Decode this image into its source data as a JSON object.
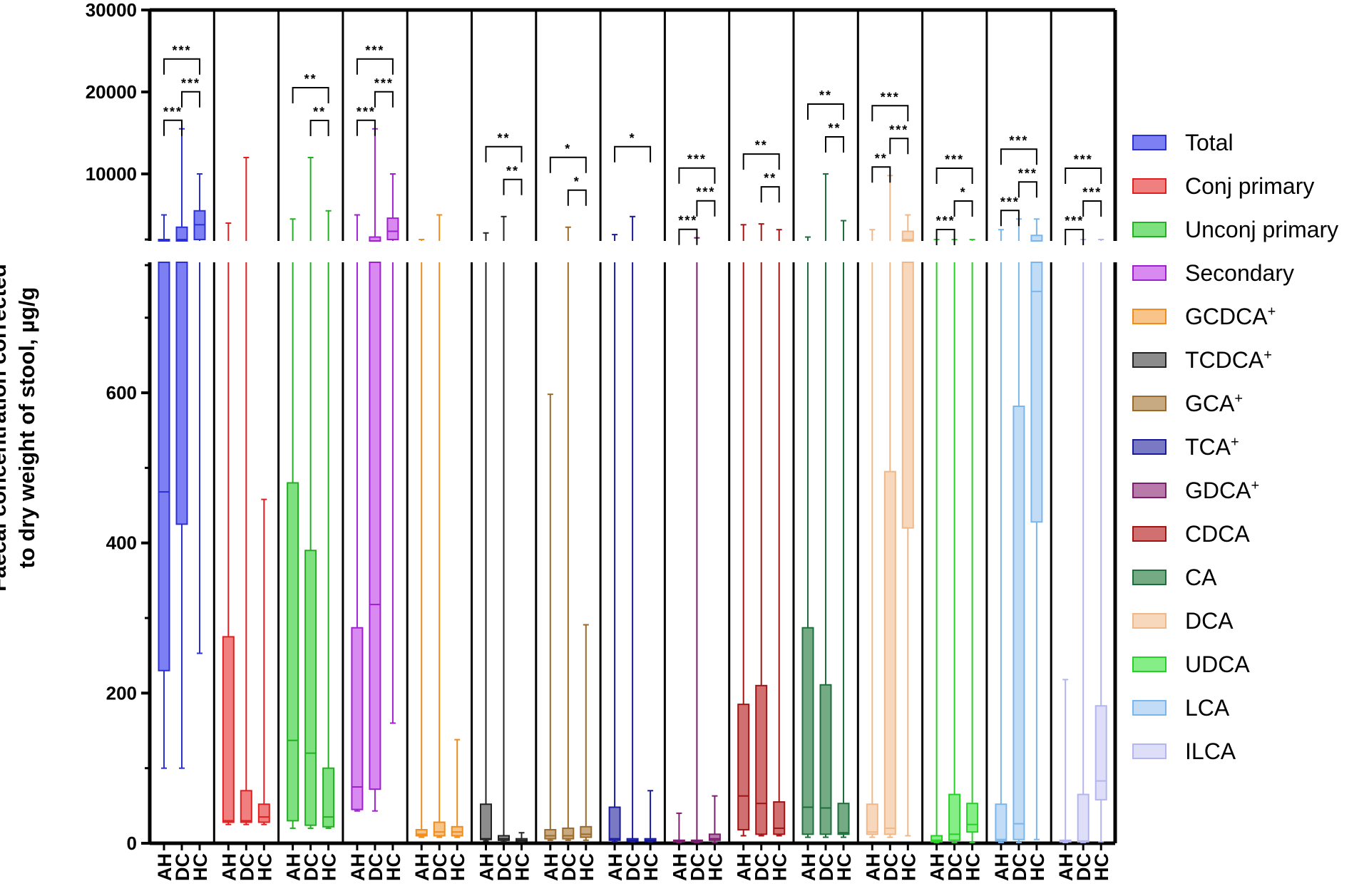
{
  "chart_data": {
    "type": "box",
    "ylabel_lines": [
      "Faecal concentration corrected",
      "to dry weight of stool, µg/g"
    ],
    "y_axis": {
      "broken": true,
      "lower_segment": {
        "range": [
          0,
          770
        ],
        "ticks": [
          "0",
          "200",
          "400",
          "600"
        ]
      },
      "upper_segment": {
        "range": [
          2000,
          30000
        ],
        "ticks": [
          "10000",
          "20000",
          "30000"
        ]
      }
    },
    "group_labels": [
      "AH",
      "DC",
      "HC"
    ],
    "legend_title_hidden": true,
    "panels": [
      {
        "name": "Total",
        "sup": "",
        "color": "#2b2fd6",
        "fill": "#7d80f2",
        "boxes": [
          {
            "group": "AH",
            "min": 100,
            "q1": 230,
            "median": 468,
            "q3": 2000,
            "max": 5000
          },
          {
            "group": "DC",
            "min": 100,
            "q1": 425,
            "median": 2000,
            "q3": 3500,
            "max": 15500
          },
          {
            "group": "HC",
            "min": 253,
            "q1": 2000,
            "median": 3800,
            "q3": 5500,
            "max": 10000
          }
        ],
        "sig": [
          {
            "pair": [
              "AH",
              "DC"
            ],
            "stars": "***"
          },
          {
            "pair": [
              "DC",
              "HC"
            ],
            "stars": "***"
          },
          {
            "pair": [
              "AH",
              "HC"
            ],
            "stars": "***"
          }
        ]
      },
      {
        "name": "Conj primary",
        "sup": "",
        "color": "#e02020",
        "fill": "#f08080",
        "boxes": [
          {
            "group": "AH",
            "min": 25,
            "q1": 28,
            "median": 30,
            "q3": 275,
            "max": 4000
          },
          {
            "group": "DC",
            "min": 25,
            "q1": 28,
            "median": 30,
            "q3": 70,
            "max": 12000
          },
          {
            "group": "HC",
            "min": 25,
            "q1": 28,
            "median": 35,
            "q3": 52,
            "max": 458
          }
        ],
        "sig": []
      },
      {
        "name": "Unconj primary",
        "sup": "",
        "color": "#22b022",
        "fill": "#7fe07f",
        "boxes": [
          {
            "group": "AH",
            "min": 20,
            "q1": 30,
            "median": 137,
            "q3": 480,
            "max": 4500
          },
          {
            "group": "DC",
            "min": 20,
            "q1": 24,
            "median": 120,
            "q3": 390,
            "max": 12000
          },
          {
            "group": "HC",
            "min": 20,
            "q1": 22,
            "median": 35,
            "q3": 100,
            "max": 5500
          }
        ],
        "sig": [
          {
            "pair": [
              "DC",
              "HC"
            ],
            "stars": "**"
          },
          {
            "pair": [
              "AH",
              "HC"
            ],
            "stars": "**"
          }
        ]
      },
      {
        "name": "Secondary",
        "sup": "",
        "color": "#a020d0",
        "fill": "#d98af0",
        "boxes": [
          {
            "group": "AH",
            "min": 43,
            "q1": 45,
            "median": 75,
            "q3": 287,
            "max": 5000
          },
          {
            "group": "DC",
            "min": 43,
            "q1": 72,
            "median": 318,
            "q3": 2300,
            "max": 15500
          },
          {
            "group": "HC",
            "min": 160,
            "q1": 2000,
            "median": 3000,
            "q3": 4600,
            "max": 10000
          }
        ],
        "sig": [
          {
            "pair": [
              "AH",
              "DC"
            ],
            "stars": "***"
          },
          {
            "pair": [
              "DC",
              "HC"
            ],
            "stars": "***"
          },
          {
            "pair": [
              "AH",
              "HC"
            ],
            "stars": "***"
          }
        ]
      },
      {
        "name": "GCDCA",
        "sup": "+",
        "color": "#f08c1a",
        "fill": "#f9c48a",
        "boxes": [
          {
            "group": "AH",
            "min": 8,
            "q1": 10,
            "median": 12,
            "q3": 18,
            "max": 2000
          },
          {
            "group": "DC",
            "min": 8,
            "q1": 10,
            "median": 15,
            "q3": 28,
            "max": 5000
          },
          {
            "group": "HC",
            "min": 8,
            "q1": 10,
            "median": 15,
            "q3": 22,
            "max": 138
          }
        ],
        "sig": []
      },
      {
        "name": "TCDCA",
        "sup": "+",
        "color": "#222222",
        "fill": "#8c8c8c",
        "boxes": [
          {
            "group": "AH",
            "min": 3,
            "q1": 5,
            "median": 6,
            "q3": 52,
            "max": 2800
          },
          {
            "group": "DC",
            "min": 2,
            "q1": 4,
            "median": 6,
            "q3": 10,
            "max": 4800
          },
          {
            "group": "HC",
            "min": 2,
            "q1": 3,
            "median": 4,
            "q3": 6,
            "max": 14
          }
        ],
        "sig": [
          {
            "pair": [
              "DC",
              "HC"
            ],
            "stars": "**"
          },
          {
            "pair": [
              "AH",
              "HC"
            ],
            "stars": "**"
          }
        ]
      },
      {
        "name": "GCA",
        "sup": "+",
        "color": "#9a6a2a",
        "fill": "#c8aa82",
        "boxes": [
          {
            "group": "AH",
            "min": 4,
            "q1": 6,
            "median": 10,
            "q3": 18,
            "max": 598
          },
          {
            "group": "DC",
            "min": 4,
            "q1": 6,
            "median": 10,
            "q3": 20,
            "max": 3500
          },
          {
            "group": "HC",
            "min": 4,
            "q1": 8,
            "median": 12,
            "q3": 22,
            "max": 291
          }
        ],
        "sig": [
          {
            "pair": [
              "DC",
              "HC"
            ],
            "stars": "*"
          },
          {
            "pair": [
              "AH",
              "HC"
            ],
            "stars": "*"
          }
        ]
      },
      {
        "name": "TCA",
        "sup": "+",
        "color": "#1a1a9c",
        "fill": "#7a7ac4",
        "boxes": [
          {
            "group": "AH",
            "min": 2,
            "q1": 4,
            "median": 6,
            "q3": 48,
            "max": 2600
          },
          {
            "group": "DC",
            "min": 2,
            "q1": 3,
            "median": 4,
            "q3": 6,
            "max": 4800
          },
          {
            "group": "HC",
            "min": 2,
            "q1": 3,
            "median": 4,
            "q3": 6,
            "max": 70
          }
        ],
        "sig": [
          {
            "pair": [
              "AH",
              "HC"
            ],
            "stars": "*"
          }
        ]
      },
      {
        "name": "GDCA",
        "sup": "+",
        "color": "#7a1f6e",
        "fill": "#b87aa8",
        "boxes": [
          {
            "group": "AH",
            "min": 1,
            "q1": 2,
            "median": 3,
            "q3": 4,
            "max": 40
          },
          {
            "group": "DC",
            "min": 1,
            "q1": 2,
            "median": 3,
            "q3": 4,
            "max": 2200
          },
          {
            "group": "HC",
            "min": 1,
            "q1": 4,
            "median": 6,
            "q3": 12,
            "max": 63
          }
        ],
        "sig": [
          {
            "pair": [
              "AH",
              "DC"
            ],
            "stars": "***"
          },
          {
            "pair": [
              "DC",
              "HC"
            ],
            "stars": "***"
          },
          {
            "pair": [
              "AH",
              "HC"
            ],
            "stars": "***"
          }
        ]
      },
      {
        "name": "CDCA",
        "sup": "",
        "color": "#a01414",
        "fill": "#d07070",
        "boxes": [
          {
            "group": "AH",
            "min": 10,
            "q1": 18,
            "median": 63,
            "q3": 185,
            "max": 3800
          },
          {
            "group": "DC",
            "min": 10,
            "q1": 12,
            "median": 53,
            "q3": 210,
            "max": 3900
          },
          {
            "group": "HC",
            "min": 10,
            "q1": 12,
            "median": 20,
            "q3": 55,
            "max": 3200
          }
        ],
        "sig": [
          {
            "pair": [
              "DC",
              "HC"
            ],
            "stars": "**"
          },
          {
            "pair": [
              "AH",
              "HC"
            ],
            "stars": "**"
          }
        ]
      },
      {
        "name": "CA",
        "sup": "",
        "color": "#1e6e3c",
        "fill": "#74aa84",
        "boxes": [
          {
            "group": "AH",
            "min": 8,
            "q1": 12,
            "median": 48,
            "q3": 287,
            "max": 2300
          },
          {
            "group": "DC",
            "min": 8,
            "q1": 12,
            "median": 47,
            "q3": 211,
            "max": 10000
          },
          {
            "group": "HC",
            "min": 8,
            "q1": 12,
            "median": 14,
            "q3": 53,
            "max": 4300
          }
        ],
        "sig": [
          {
            "pair": [
              "DC",
              "HC"
            ],
            "stars": "**"
          },
          {
            "pair": [
              "AH",
              "HC"
            ],
            "stars": "**"
          }
        ]
      },
      {
        "name": "DCA",
        "sup": "",
        "color": "#f0b888",
        "fill": "#f8d8bc",
        "boxes": [
          {
            "group": "AH",
            "min": 8,
            "q1": 12,
            "median": 15,
            "q3": 52,
            "max": 3200
          },
          {
            "group": "DC",
            "min": 8,
            "q1": 12,
            "median": 20,
            "q3": 495,
            "max": 9800
          },
          {
            "group": "HC",
            "min": 10,
            "q1": 420,
            "median": 2000,
            "q3": 3000,
            "max": 5000
          }
        ],
        "sig": [
          {
            "pair": [
              "AH",
              "DC"
            ],
            "stars": "**"
          },
          {
            "pair": [
              "DC",
              "HC"
            ],
            "stars": "***"
          },
          {
            "pair": [
              "AH",
              "HC"
            ],
            "stars": "***"
          }
        ]
      },
      {
        "name": "UDCA",
        "sup": "",
        "color": "#26d026",
        "fill": "#86ee86",
        "boxes": [
          {
            "group": "AH",
            "min": 1,
            "q1": 2,
            "median": 4,
            "q3": 10,
            "max": 2000
          },
          {
            "group": "DC",
            "min": 1,
            "q1": 4,
            "median": 12,
            "q3": 65,
            "max": 2000
          },
          {
            "group": "HC",
            "min": 1,
            "q1": 15,
            "median": 25,
            "q3": 53,
            "max": 2000
          }
        ],
        "sig": [
          {
            "pair": [
              "AH",
              "DC"
            ],
            "stars": "***"
          },
          {
            "pair": [
              "DC",
              "HC"
            ],
            "stars": "*"
          },
          {
            "pair": [
              "AH",
              "HC"
            ],
            "stars": "***"
          }
        ]
      },
      {
        "name": "LCA",
        "sup": "",
        "color": "#7ab6ee",
        "fill": "#c2dcf6",
        "boxes": [
          {
            "group": "AH",
            "min": 1,
            "q1": 3,
            "median": 5,
            "q3": 52,
            "max": 3200
          },
          {
            "group": "DC",
            "min": 1,
            "q1": 5,
            "median": 26,
            "q3": 582,
            "max": 4500
          },
          {
            "group": "HC",
            "min": 5,
            "q1": 428,
            "median": 735,
            "q3": 2500,
            "max": 4500
          }
        ],
        "sig": [
          {
            "pair": [
              "AH",
              "DC"
            ],
            "stars": "***"
          },
          {
            "pair": [
              "DC",
              "HC"
            ],
            "stars": "***"
          },
          {
            "pair": [
              "AH",
              "HC"
            ],
            "stars": "***"
          }
        ]
      },
      {
        "name": "ILCA",
        "sup": "",
        "color": "#b4b4ee",
        "fill": "#dedef8",
        "boxes": [
          {
            "group": "AH",
            "min": 1,
            "q1": 2,
            "median": 3,
            "q3": 4,
            "max": 218
          },
          {
            "group": "DC",
            "min": 1,
            "q1": 2,
            "median": 3,
            "q3": 65,
            "max": 2000
          },
          {
            "group": "HC",
            "min": 2,
            "q1": 58,
            "median": 83,
            "q3": 183,
            "max": 2000
          }
        ],
        "sig": [
          {
            "pair": [
              "AH",
              "DC"
            ],
            "stars": "***"
          },
          {
            "pair": [
              "DC",
              "HC"
            ],
            "stars": "***"
          },
          {
            "pair": [
              "AH",
              "HC"
            ],
            "stars": "***"
          }
        ]
      }
    ]
  }
}
